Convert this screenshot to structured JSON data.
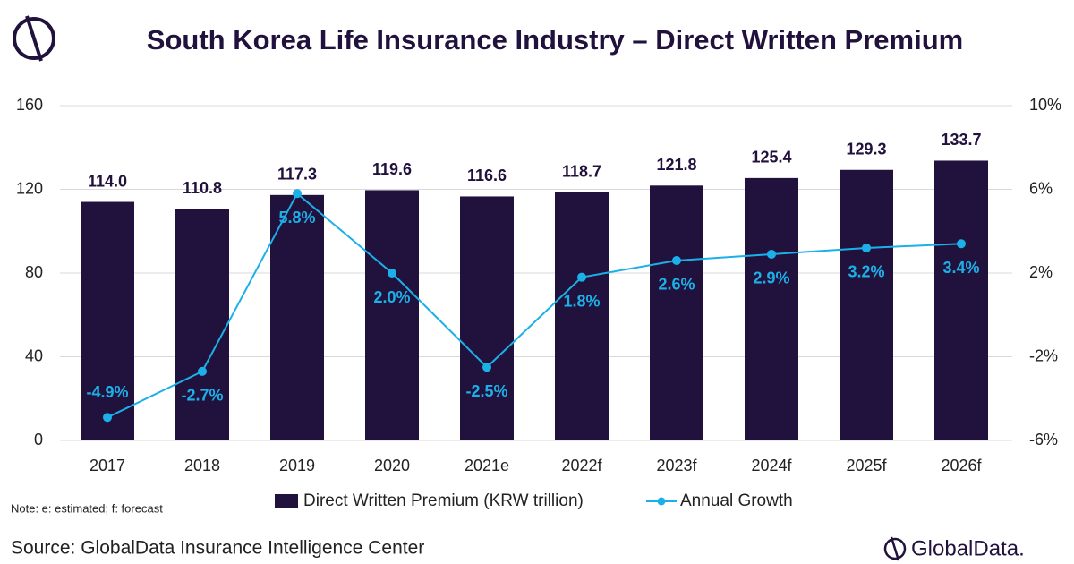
{
  "title": "South Korea Life Insurance Industry – Direct Written Premium",
  "note": "Note: e: estimated; f: forecast",
  "source": "Source: GlobalData Insurance Intelligence Center",
  "brand": "GlobalData.",
  "chart_data": {
    "type": "bar",
    "categories": [
      "2017",
      "2018",
      "2019",
      "2020",
      "2021e",
      "2022f",
      "2023f",
      "2024f",
      "2025f",
      "2026f"
    ],
    "series": [
      {
        "name": "Direct Written Premium (KRW trillion)",
        "type": "bar",
        "color": "#21123d",
        "values": [
          114.0,
          110.8,
          117.3,
          119.6,
          116.6,
          118.7,
          121.8,
          125.4,
          129.3,
          133.7
        ],
        "value_labels": [
          "114.0",
          "110.8",
          "117.3",
          "119.6",
          "116.6",
          "118.7",
          "121.8",
          "125.4",
          "129.3",
          "133.7"
        ]
      },
      {
        "name": "Annual Growth",
        "type": "line",
        "axis": "y2",
        "color": "#1cb0e8",
        "values": [
          -4.9,
          -2.7,
          5.8,
          2.0,
          -2.5,
          1.8,
          2.6,
          2.9,
          3.2,
          3.4
        ],
        "value_labels": [
          "-4.9%",
          "-2.7%",
          "5.8%",
          "2.0%",
          "-2.5%",
          "1.8%",
          "2.6%",
          "2.9%",
          "3.2%",
          "3.4%"
        ]
      }
    ],
    "ylim": [
      0,
      160
    ],
    "yticks": [
      0,
      40,
      80,
      120,
      160
    ],
    "y2lim": [
      -6,
      10
    ],
    "y2ticks": [
      {
        "value": -6,
        "label": "-6%"
      },
      {
        "value": -2,
        "label": "-2%"
      },
      {
        "value": 2,
        "label": "2%"
      },
      {
        "value": 6,
        "label": "6%"
      },
      {
        "value": 10,
        "label": "10%"
      }
    ],
    "grid": true,
    "legend": "bottom"
  }
}
